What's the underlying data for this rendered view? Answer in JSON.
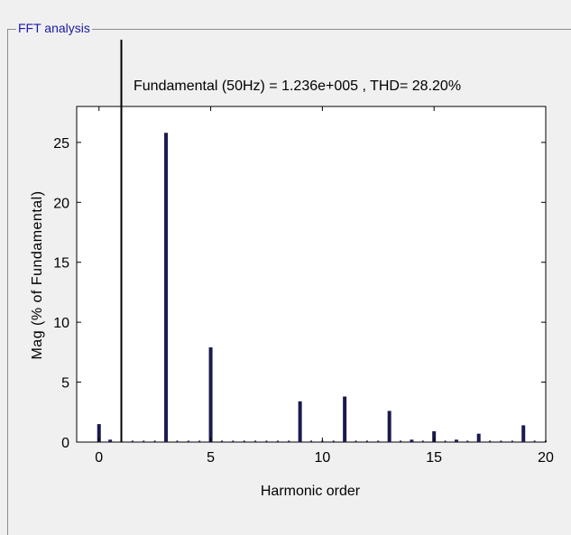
{
  "panel": {
    "title": "FFT analysis"
  },
  "chart_data": {
    "type": "bar",
    "title": "Fundamental (50Hz) = 1.236e+005 , THD= 28.20%",
    "xlabel": "Harmonic order",
    "ylabel": "Mag (% of Fundamental)",
    "xlim": [
      -1,
      20
    ],
    "ylim": [
      0,
      28
    ],
    "xticks": [
      0,
      5,
      10,
      15,
      20
    ],
    "yticks": [
      0,
      5,
      10,
      15,
      20,
      25
    ],
    "bar_color": "#1a1a4e",
    "fundamental_color": "#000000",
    "fundamental_order": 1,
    "x": [
      0,
      0.5,
      3,
      5,
      9,
      11,
      13,
      14,
      15,
      16,
      17,
      19
    ],
    "values": [
      1.5,
      0.2,
      25.8,
      7.9,
      3.4,
      3.8,
      2.6,
      0.2,
      0.9,
      0.2,
      0.7,
      1.4
    ]
  }
}
